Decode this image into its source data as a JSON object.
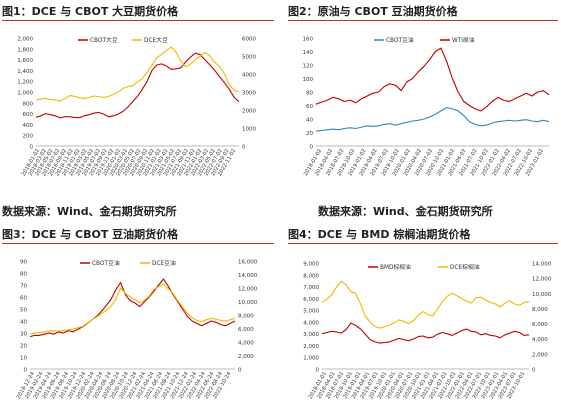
{
  "titles": {
    "fig1": "图1：DCE 与 CBOT 大豆期货价格",
    "fig2": "图2：原油与 CBOT 豆油期货价格",
    "fig3": "图3：DCE 与 CBOT 豆油期货价格",
    "fig4": "图4：DCE 与 BMD 棕榈油期货价格"
  },
  "sources": {
    "left": "数据来源：Wind、金石期货研究所",
    "right": "数据来源：Wind、金石期货研究所"
  },
  "colors": {
    "red": "#c00000",
    "yellow": "#f2b800",
    "blue": "#2e86c8",
    "axis": "#bbbbbb"
  },
  "chart_data": [
    {
      "id": "fig1",
      "type": "line",
      "x_ticks": [
        "2018-01-02",
        "2018-03-02",
        "2018-05-02",
        "2018-07-02",
        "2018-09-02",
        "2018-11-02",
        "2019-01-02",
        "2019-03-02",
        "2019-05-02",
        "2019-07-02",
        "2019-09-02",
        "2019-11-02",
        "2020-01-02",
        "2020-03-02",
        "2020-05-02",
        "2020-07-02",
        "2020-09-02",
        "2020-11-02",
        "2021-01-02",
        "2021-03-02",
        "2021-05-02",
        "2021-07-02",
        "2021-09-02",
        "2021-11-02",
        "2022-01-02",
        "2022-03-02",
        "2022-05-02",
        "2022-07-02",
        "2022-09-02",
        "2022-11-02"
      ],
      "y_left": {
        "min": 0,
        "max": 2000,
        "ticks": [
          "0",
          "200",
          "400",
          "600",
          "800",
          "1,000",
          "1,200",
          "1,400",
          "1,600",
          "1,800",
          "2,000"
        ]
      },
      "y_right": {
        "min": 0,
        "max": 6000,
        "ticks": [
          "0",
          "1000",
          "2000",
          "3000",
          "4000",
          "5000",
          "6000"
        ]
      },
      "series": [
        {
          "name": "CBOT大豆",
          "axis": "left",
          "color": "red",
          "values": [
            530,
            560,
            600,
            580,
            560,
            520,
            545,
            540,
            530,
            525,
            560,
            580,
            610,
            620,
            590,
            540,
            560,
            590,
            640,
            720,
            820,
            920,
            1050,
            1200,
            1400,
            1500,
            1520,
            1480,
            1420,
            1430,
            1450,
            1560,
            1650,
            1720,
            1690,
            1590,
            1500,
            1400,
            1280,
            1170,
            1050,
            900,
            820
          ]
        },
        {
          "name": "DCE大豆",
          "axis": "right",
          "color": "yellow",
          "values": [
            2550,
            2600,
            2650,
            2580,
            2560,
            2500,
            2620,
            2800,
            2760,
            2680,
            2640,
            2700,
            2780,
            2750,
            2700,
            2750,
            2880,
            3000,
            3200,
            3300,
            3350,
            3550,
            3750,
            4100,
            4500,
            4900,
            5100,
            5300,
            5500,
            5200,
            4700,
            4400,
            4550,
            4800,
            5000,
            5200,
            5000,
            4650,
            4400,
            4000,
            3400,
            3100,
            3000
          ]
        }
      ]
    },
    {
      "id": "fig2",
      "type": "line",
      "x_ticks": [
        "2018-01-02",
        "2018-04-02",
        "2018-07-02",
        "2018-10-02",
        "2019-01-02",
        "2019-04-02",
        "2019-07-02",
        "2019-10-02",
        "2020-01-02",
        "2020-04-02",
        "2020-07-02",
        "2020-10-02",
        "2021-01-02",
        "2021-04-02",
        "2021-07-02",
        "2021-10-02",
        "2022-01-02",
        "2022-04-02",
        "2022-07-02",
        "2022-10-02",
        "2023-01-02"
      ],
      "y_left": {
        "min": 0,
        "max": 160,
        "ticks": [
          "0",
          "20",
          "40",
          "60",
          "80",
          "100",
          "120",
          "140",
          "160"
        ]
      },
      "series": [
        {
          "name": "CBOT豆油",
          "axis": "left",
          "color": "blue",
          "values": [
            22,
            23,
            24,
            25,
            24,
            26,
            27,
            26,
            28,
            30,
            29,
            30,
            32,
            33,
            31,
            33,
            35,
            37,
            38,
            40,
            43,
            47,
            52,
            57,
            55,
            52,
            45,
            36,
            32,
            30,
            31,
            34,
            36,
            37,
            38,
            37,
            38,
            39,
            37,
            36,
            38,
            36
          ]
        },
        {
          "name": "WTI原油",
          "axis": "left",
          "color": "red",
          "values": [
            62,
            65,
            68,
            72,
            70,
            66,
            68,
            64,
            70,
            74,
            78,
            80,
            88,
            92,
            90,
            82,
            95,
            100,
            110,
            118,
            128,
            140,
            145,
            125,
            100,
            80,
            66,
            60,
            55,
            52,
            58,
            66,
            72,
            68,
            66,
            70,
            74,
            78,
            74,
            80,
            82,
            76
          ]
        }
      ]
    },
    {
      "id": "fig3",
      "type": "line",
      "x_ticks": [
        "2018-12-24",
        "2019-02-24",
        "2019-04-24",
        "2019-06-24",
        "2019-08-24",
        "2019-10-24",
        "2019-12-24",
        "2020-02-24",
        "2020-04-24",
        "2020-06-24",
        "2020-08-24",
        "2020-10-24",
        "2020-12-24",
        "2021-02-24",
        "2021-04-24",
        "2021-06-24",
        "2021-08-24",
        "2021-10-24",
        "2021-12-24",
        "2022-02-24",
        "2022-04-24",
        "2022-06-24",
        "2022-08-24",
        "2022-10-24"
      ],
      "y_left": {
        "min": 0,
        "max": 90,
        "ticks": [
          "0",
          "10",
          "20",
          "30",
          "40",
          "50",
          "60",
          "70",
          "80",
          "90"
        ]
      },
      "y_right": {
        "min": 0,
        "max": 16000,
        "ticks": [
          "0",
          "2,000",
          "4,000",
          "6,000",
          "8,000",
          "10,000",
          "12,000",
          "14,000",
          "16,000"
        ]
      },
      "series": [
        {
          "name": "CBOT豆油",
          "axis": "left",
          "color": "red",
          "values": [
            27,
            28,
            28,
            29,
            30,
            29,
            31,
            30,
            32,
            31,
            33,
            35,
            38,
            41,
            44,
            48,
            53,
            58,
            66,
            72,
            62,
            57,
            55,
            52,
            56,
            60,
            65,
            70,
            75,
            69,
            62,
            56,
            50,
            44,
            40,
            38,
            36,
            38,
            40,
            39,
            37,
            36,
            38,
            40
          ]
        },
        {
          "name": "DCE豆油",
          "axis": "right",
          "color": "yellow",
          "values": [
            5200,
            5300,
            5400,
            5500,
            5600,
            5700,
            5600,
            5700,
            5800,
            5900,
            6100,
            6300,
            6800,
            7300,
            7700,
            8200,
            8700,
            9300,
            10300,
            12000,
            11200,
            10700,
            10300,
            9800,
            10200,
            10800,
            11800,
            12200,
            12600,
            11900,
            11200,
            10100,
            9200,
            8300,
            7600,
            7200,
            7000,
            7300,
            7500,
            7400,
            7200,
            7100,
            7300,
            7500
          ]
        }
      ]
    },
    {
      "id": "fig4",
      "type": "line",
      "x_ticks": [
        "2018-01-01",
        "2018-04-01",
        "2018-07-01",
        "2018-10-01",
        "2019-01-01",
        "2019-04-01",
        "2019-07-01",
        "2019-10-01",
        "2020-01-01",
        "2020-04-01",
        "2020-07-01",
        "2020-10-01",
        "2021-01-01",
        "2021-04-01",
        "2021-07-01",
        "2021-10-01",
        "2022-01-01",
        "2022-04-01",
        "2022-07-01",
        "2022-10-01",
        "2023-01-01",
        "2023-04-01",
        "2023-07-01",
        "2023-10-01"
      ],
      "y_left": {
        "min": 0,
        "max": 9000,
        "ticks": [
          "0",
          "1,000",
          "2,000",
          "3,000",
          "4,000",
          "5,000",
          "6,000",
          "7,000",
          "8,000",
          "9,000"
        ]
      },
      "y_right": {
        "min": 0,
        "max": 14000,
        "ticks": [
          "0",
          "2,000",
          "4,000",
          "6,000",
          "8,000",
          "10,000",
          "12,000",
          "14,000"
        ]
      },
      "series": [
        {
          "name": "BMD棕榈油",
          "axis": "left",
          "color": "red",
          "values": [
            3000,
            3100,
            3200,
            3150,
            3050,
            3350,
            3900,
            3700,
            3400,
            2950,
            2500,
            2300,
            2200,
            2250,
            2300,
            2450,
            2600,
            2500,
            2400,
            2550,
            2750,
            2800,
            2650,
            2700,
            2950,
            3100,
            3000,
            2850,
            3050,
            3250,
            3400,
            3200,
            3150,
            2900,
            3000,
            2850,
            2800,
            2650,
            2900,
            3050,
            3200,
            3100,
            2850,
            2900
          ]
        },
        {
          "name": "DCE棕榈油",
          "axis": "right",
          "color": "yellow",
          "values": [
            8800,
            9200,
            9800,
            10800,
            11600,
            11100,
            10200,
            10000,
            8600,
            7000,
            6200,
            5600,
            5400,
            5600,
            5800,
            6100,
            6500,
            6300,
            6000,
            6400,
            7100,
            7600,
            7200,
            7000,
            7900,
            8900,
            9600,
            10000,
            9700,
            9300,
            9000,
            8700,
            9400,
            9500,
            9100,
            8800,
            8600,
            8200,
            8700,
            9000,
            8600,
            8400,
            8800,
            8900
          ]
        }
      ]
    }
  ]
}
